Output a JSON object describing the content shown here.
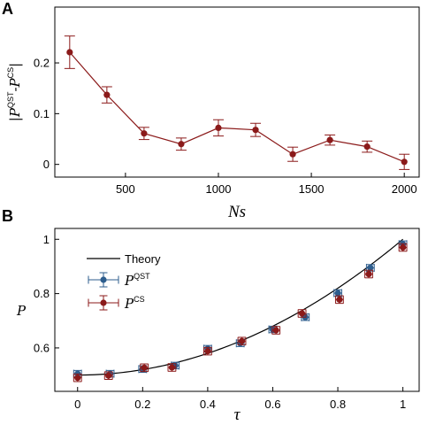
{
  "chart_data": [
    {
      "panel": "A",
      "type": "line",
      "xlabel": "Ns",
      "ylabel_prefix": "|",
      "ylabel_p1": "P",
      "ylabel_sup1": "QST",
      "ylabel_minus": "-",
      "ylabel_p2": "P",
      "ylabel_sup2": "CS",
      "ylabel_suffix": "|",
      "xlim": [
        120,
        2080
      ],
      "ylim": [
        -0.025,
        0.31
      ],
      "xticks": [
        500,
        1000,
        1500,
        2000
      ],
      "yticks": [
        0,
        0.1,
        0.2
      ],
      "ytick_labels": [
        "0",
        "0.1",
        "0.2"
      ],
      "grid": false,
      "color": "#8b1a1a",
      "series": [
        {
          "x": [
            200,
            400,
            600,
            800,
            1000,
            1200,
            1400,
            1600,
            1800,
            2000
          ],
          "y": [
            0.221,
            0.137,
            0.061,
            0.04,
            0.072,
            0.068,
            0.02,
            0.048,
            0.035,
            0.005
          ],
          "yerr": [
            0.032,
            0.016,
            0.012,
            0.012,
            0.016,
            0.013,
            0.014,
            0.01,
            0.011,
            0.015
          ]
        }
      ]
    },
    {
      "panel": "B",
      "type": "scatter",
      "xlabel": "τ",
      "ylabel": "P",
      "xlim": [
        -0.07,
        1.05
      ],
      "ylim": [
        0.44,
        1.04
      ],
      "xticks": [
        0,
        0.2,
        0.4,
        0.6,
        0.8,
        1
      ],
      "xtick_labels": [
        "0",
        "0.2",
        "0.4",
        "0.6",
        "0.8",
        "1"
      ],
      "yticks": [
        0.6,
        0.8,
        1
      ],
      "ytick_labels": [
        "0.6",
        "0.8",
        "1"
      ],
      "grid": false,
      "legend_position": "top-left",
      "theory": {
        "name": "Theory",
        "x_range": [
          0,
          1
        ],
        "color": "#000000"
      },
      "series": [
        {
          "name_main": "P",
          "name_sup": "QST",
          "color": "#2e5e8e",
          "x": [
            0,
            0.1,
            0.2,
            0.3,
            0.4,
            0.5,
            0.6,
            0.7,
            0.8,
            0.9,
            1.0
          ],
          "y": [
            0.505,
            0.505,
            0.522,
            0.535,
            0.597,
            0.617,
            0.668,
            0.713,
            0.802,
            0.895,
            0.982
          ],
          "xerr": [
            0.012,
            0.012,
            0.012,
            0.012,
            0.012,
            0.012,
            0.012,
            0.012,
            0.012,
            0.012,
            0.012
          ],
          "yerr": [
            0.012,
            0.012,
            0.012,
            0.012,
            0.012,
            0.012,
            0.012,
            0.012,
            0.012,
            0.012,
            0.012
          ]
        },
        {
          "name_main": "P",
          "name_sup": "CS",
          "color": "#8b1a1a",
          "x": [
            0,
            0.095,
            0.205,
            0.29,
            0.4,
            0.505,
            0.61,
            0.69,
            0.805,
            0.895,
            1.0
          ],
          "y": [
            0.49,
            0.498,
            0.527,
            0.528,
            0.588,
            0.625,
            0.665,
            0.727,
            0.778,
            0.872,
            0.97
          ],
          "xerr": [
            0.012,
            0.012,
            0.012,
            0.012,
            0.012,
            0.012,
            0.012,
            0.012,
            0.012,
            0.012,
            0.012
          ],
          "yerr": [
            0.014,
            0.014,
            0.014,
            0.014,
            0.014,
            0.014,
            0.014,
            0.014,
            0.014,
            0.014,
            0.014
          ]
        }
      ]
    }
  ]
}
